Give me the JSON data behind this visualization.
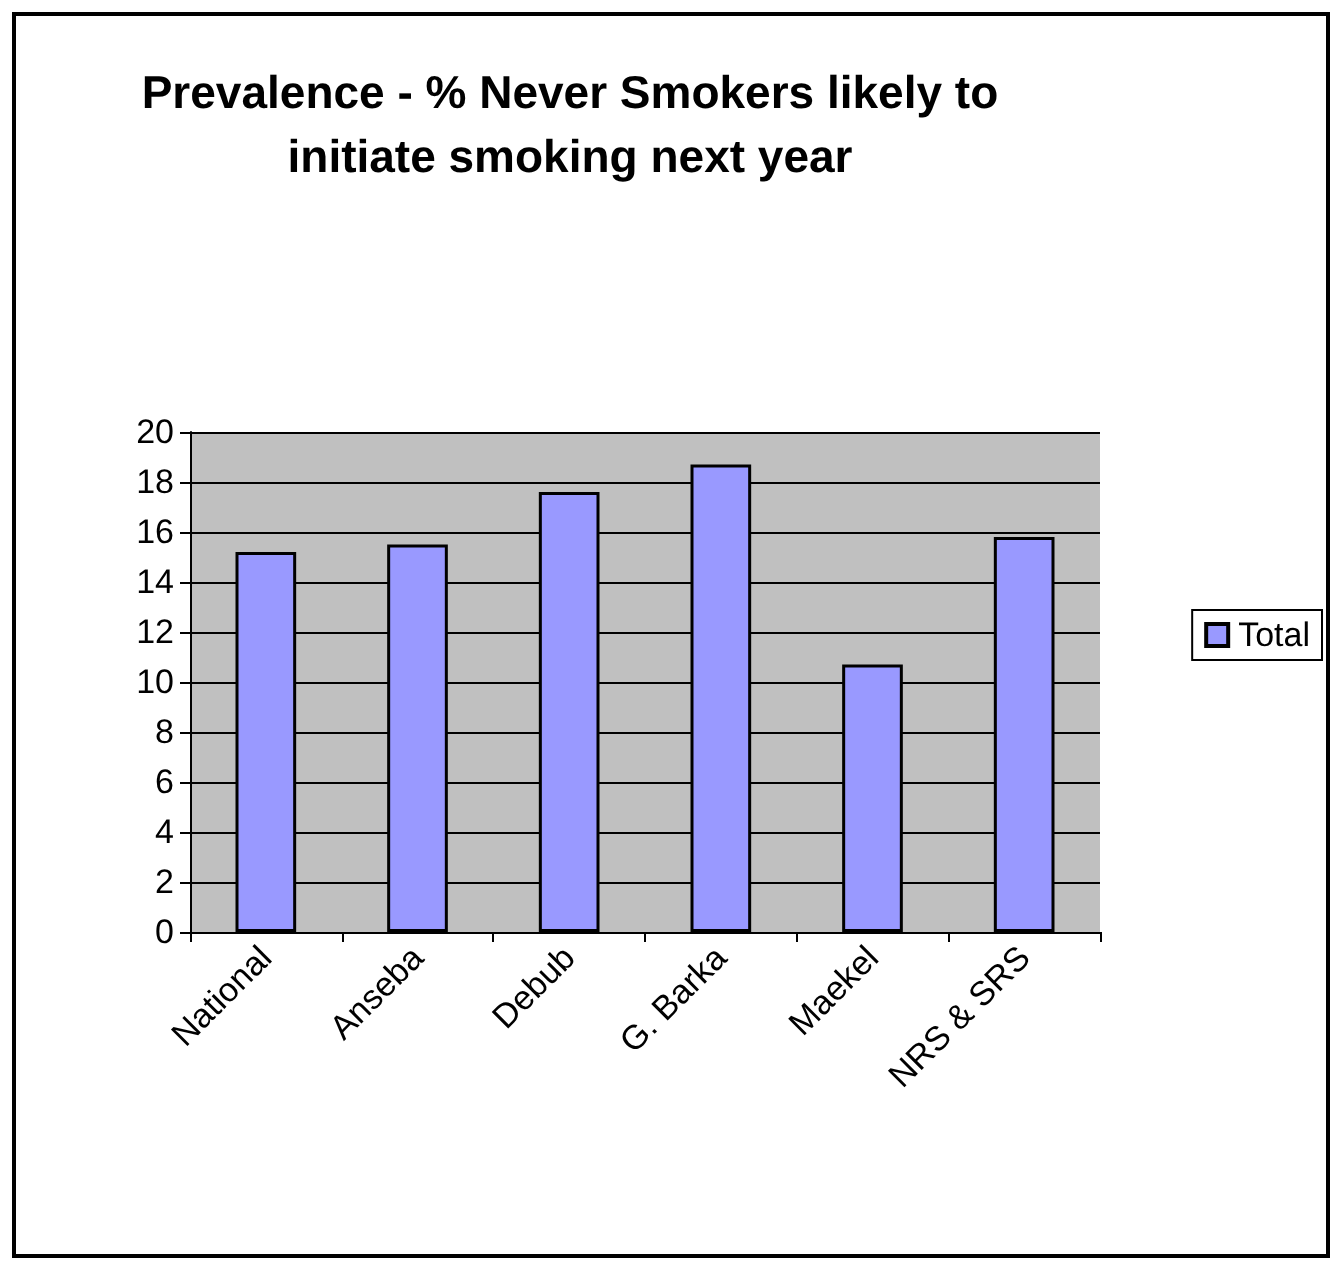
{
  "chart_data": {
    "type": "bar",
    "title": "Prevalence - % Never Smokers likely to initiate smoking next year",
    "categories": [
      "National",
      "Anseba",
      "Debub",
      "G. Barka",
      "Maekel",
      "NRS & SRS"
    ],
    "series": [
      {
        "name": "Total",
        "color": "#9999ff",
        "values": [
          15.2,
          15.5,
          17.6,
          18.7,
          10.7,
          15.8
        ]
      }
    ],
    "ylim": [
      0,
      20
    ],
    "yticks": [
      0,
      2,
      4,
      6,
      8,
      10,
      12,
      14,
      16,
      18,
      20
    ],
    "grid": "y",
    "legend": "right"
  }
}
